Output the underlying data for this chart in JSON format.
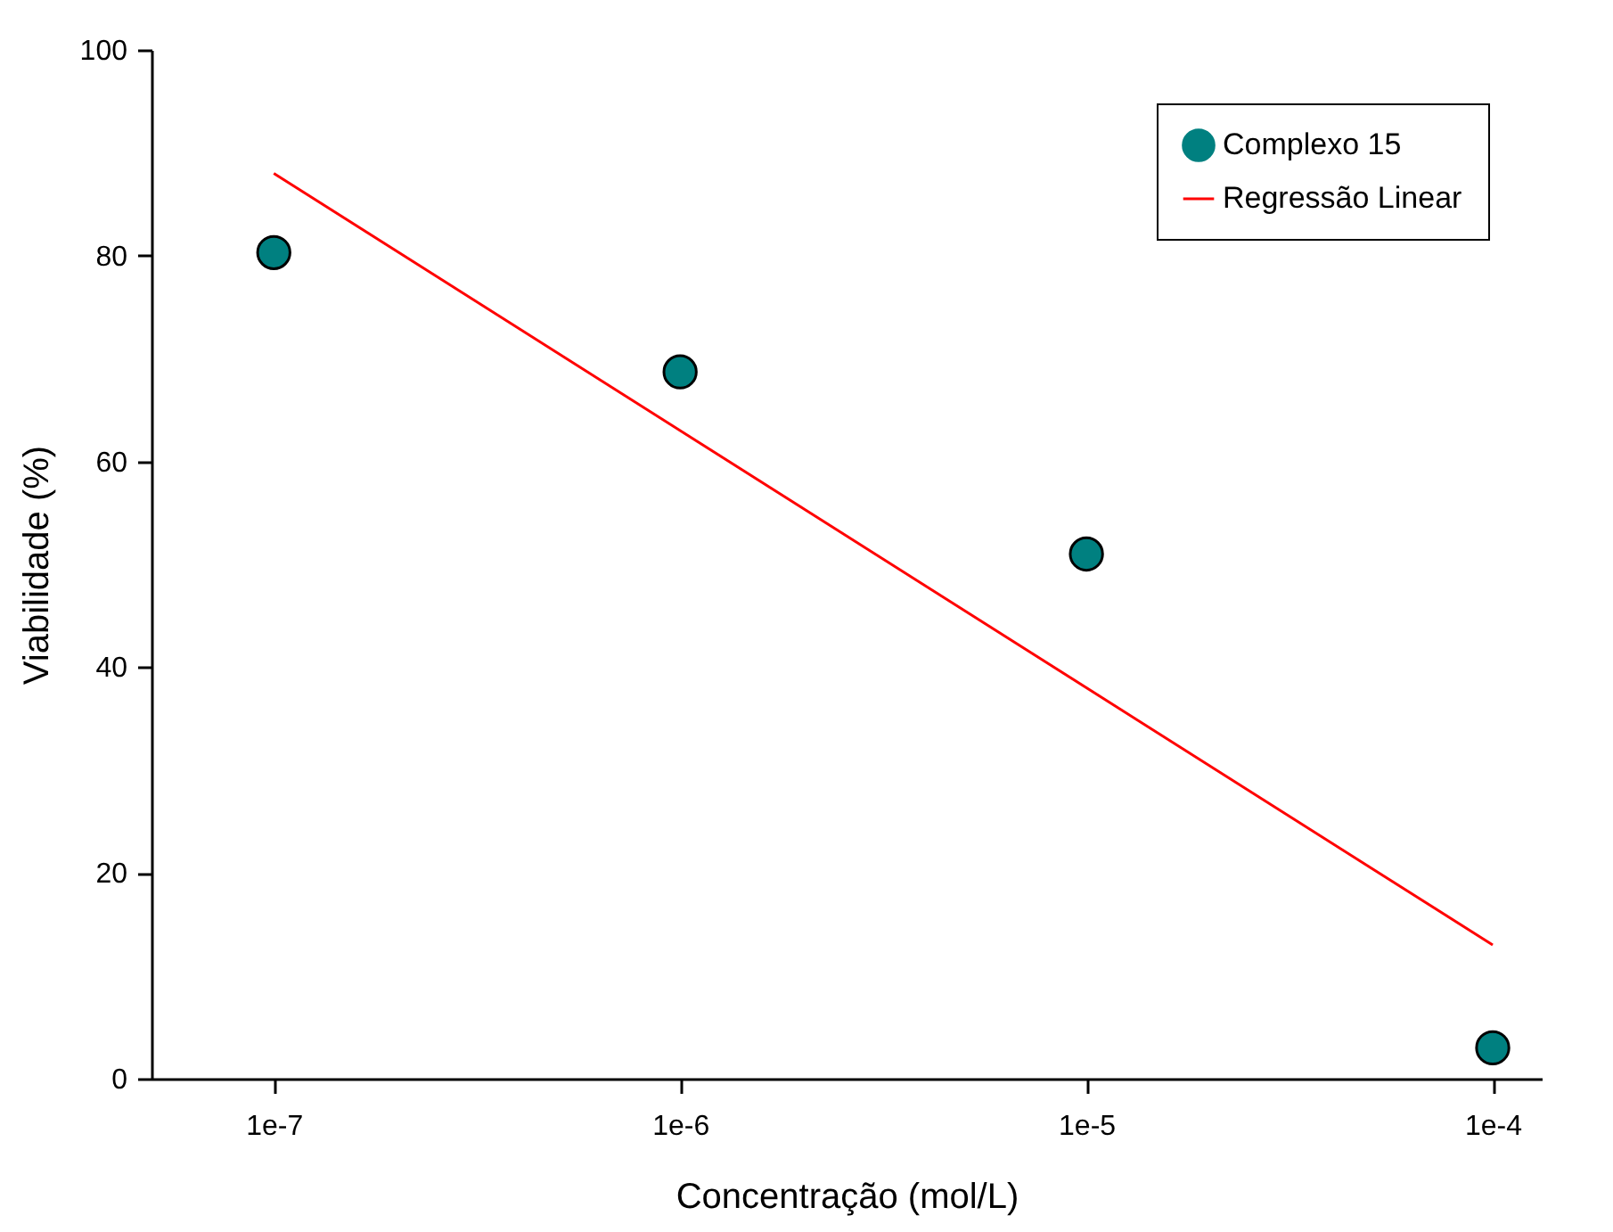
{
  "chart_data": {
    "type": "scatter",
    "xlabel": "Concentração (mol/L)",
    "ylabel": "Viabilidade (%)",
    "log": "x",
    "x": [
      1e-07,
      1e-06,
      1e-05,
      0.0001
    ],
    "series": [
      {
        "name": "Complexo 15",
        "marker": "circle",
        "color": "#008080",
        "values": [
          80.3,
          68.7,
          51.0,
          3.0
        ]
      },
      {
        "name": "Regressão Linear",
        "type": "line",
        "color": "#ff0000",
        "x": [
          1e-07,
          0.0001
        ],
        "values": [
          88.0,
          13.0
        ]
      }
    ],
    "xlim": [
      5e-08,
      0.000132
    ],
    "ylim": [
      0,
      100
    ],
    "xticks": [
      {
        "value": 1e-07,
        "label": "1e-7"
      },
      {
        "value": 1e-06,
        "label": "1e-6"
      },
      {
        "value": 1e-05,
        "label": "1e-5"
      },
      {
        "value": 0.0001,
        "label": "1e-4"
      }
    ],
    "yticks": [
      0,
      20,
      40,
      60,
      80,
      100
    ],
    "grid": false,
    "legend": "top right",
    "line_style": "solid"
  }
}
